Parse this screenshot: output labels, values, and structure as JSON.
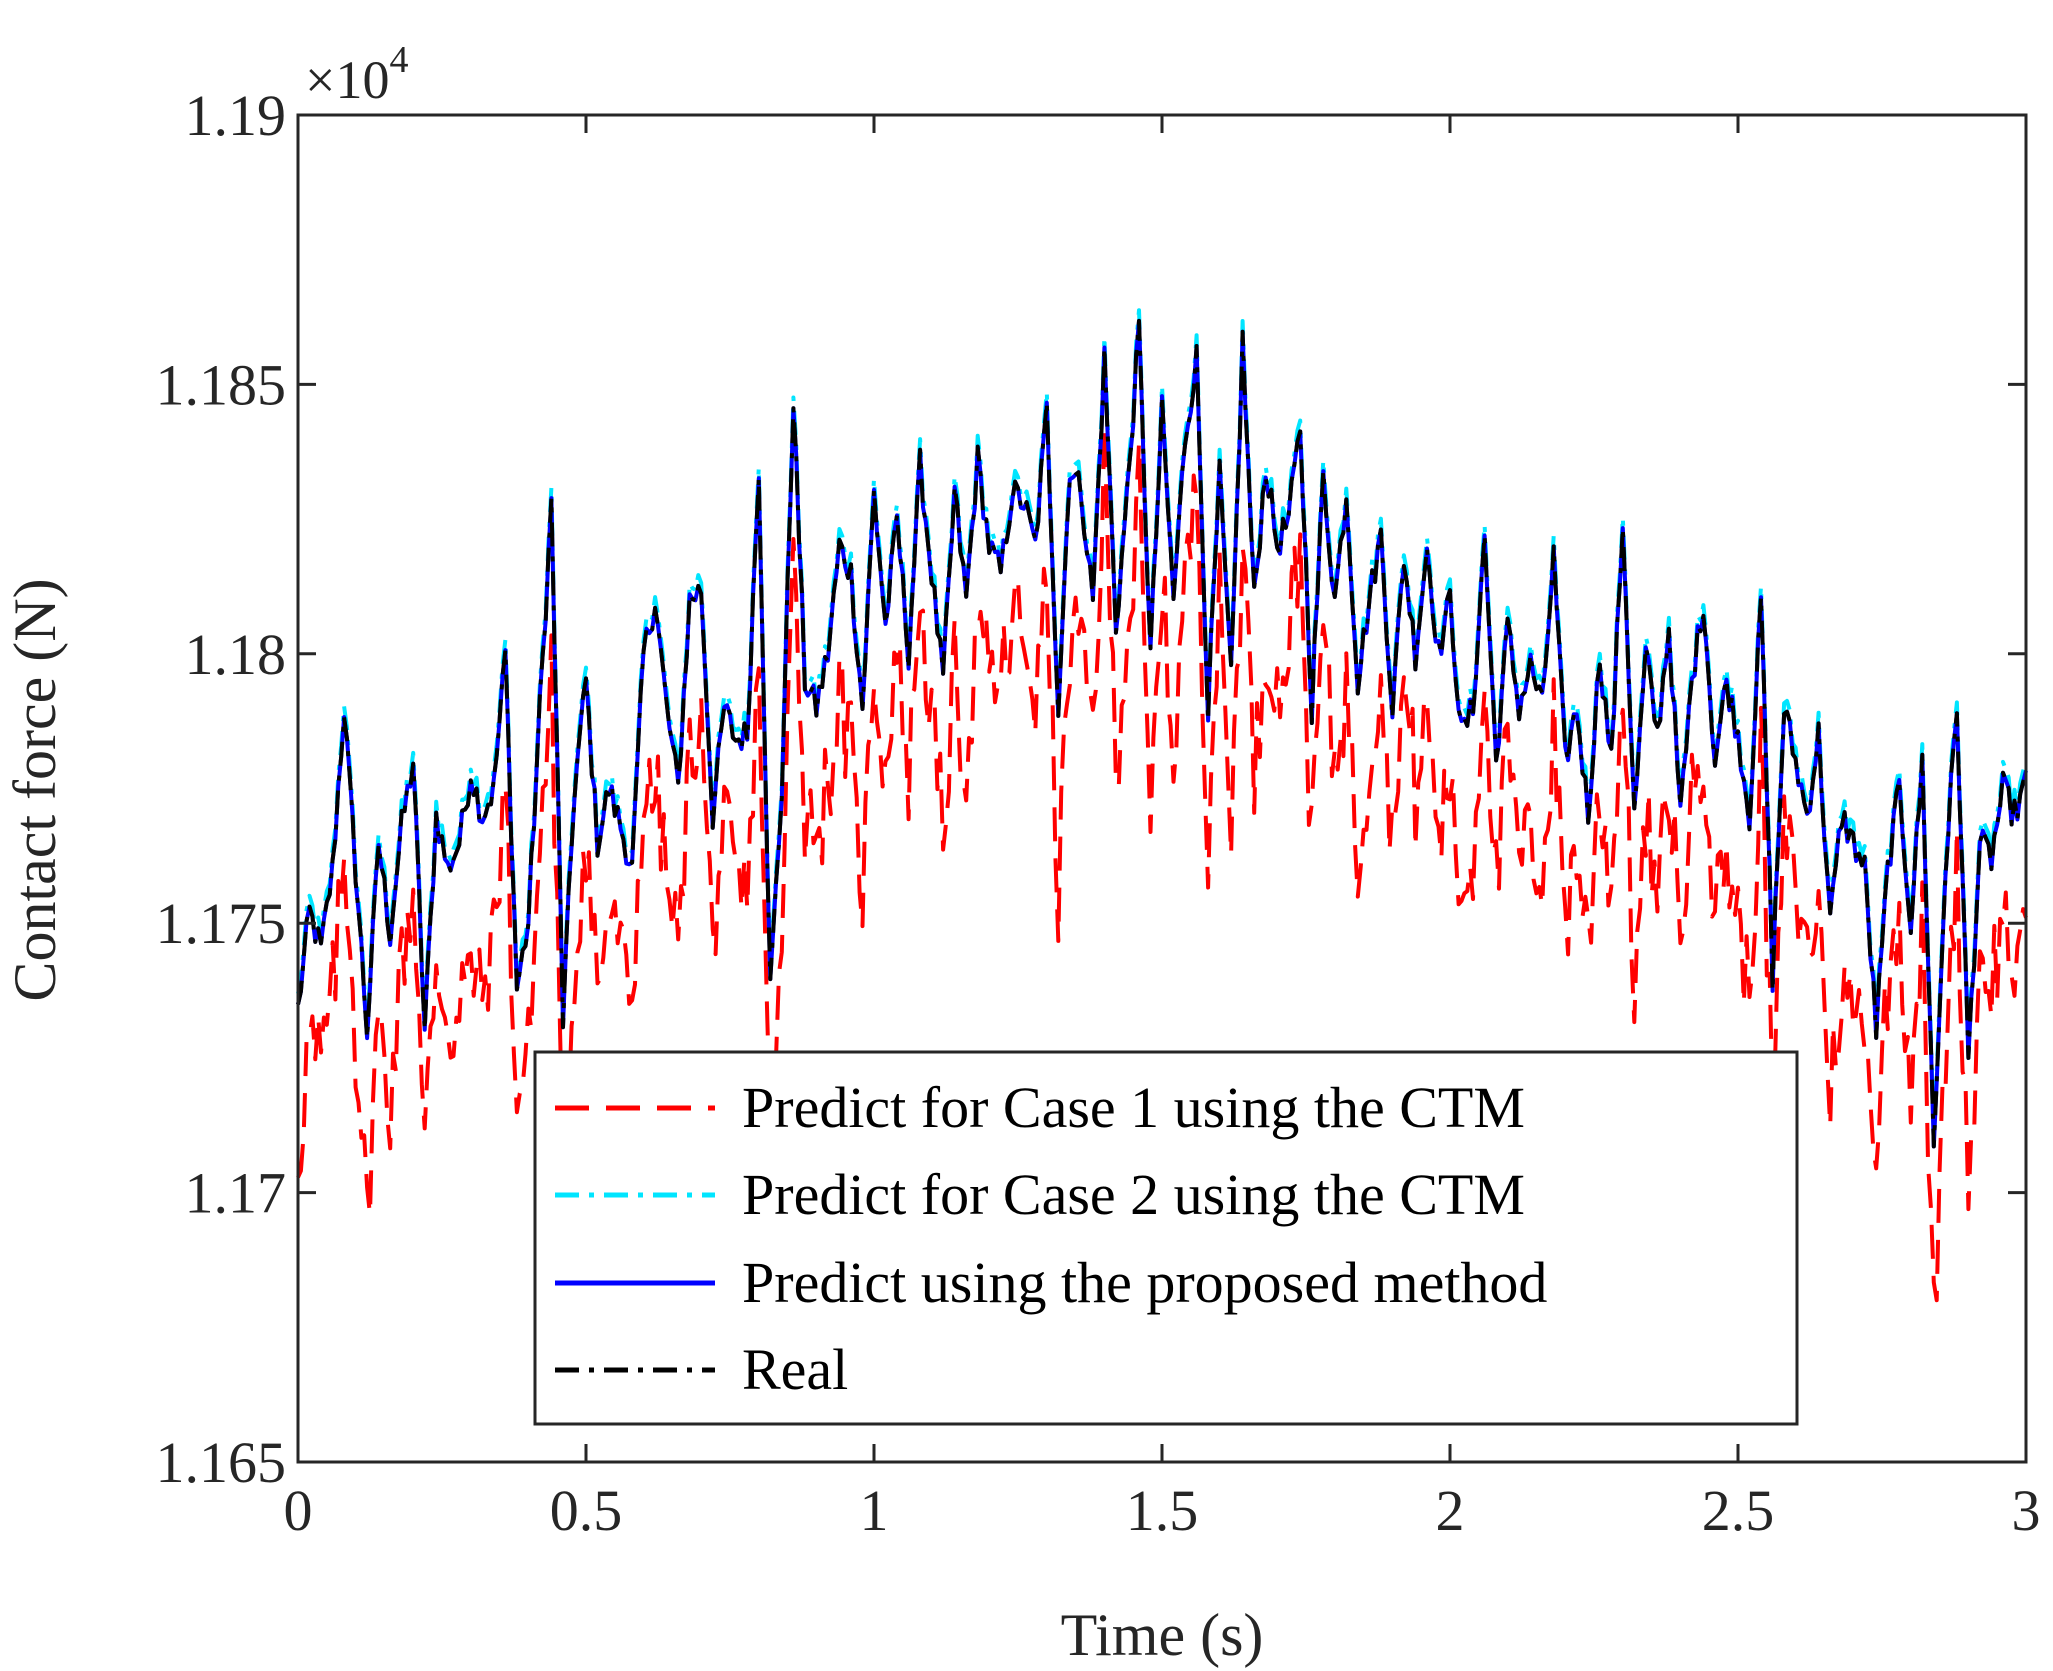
{
  "chart_data": {
    "type": "line",
    "xlabel": "Time (s)",
    "ylabel": "Contact force (N)",
    "xlim": [
      0,
      3
    ],
    "ylim": [
      11650,
      11900
    ],
    "x_ticks": [
      0,
      0.5,
      1,
      1.5,
      2,
      2.5,
      3
    ],
    "x_tick_labels": [
      "0",
      "0.5",
      "1",
      "1.5",
      "2",
      "2.5",
      "3"
    ],
    "y_ticks": [
      11650,
      11700,
      11750,
      11800,
      11850,
      11900
    ],
    "y_tick_labels": [
      "1.165",
      "1.17",
      "1.175",
      "1.18",
      "1.185",
      "1.19"
    ],
    "y_exponent_prefix": "×10",
    "y_exponent_power": "4",
    "grid": false,
    "legend_position": "bottom-center",
    "real_anchors": {
      "x": [
        0,
        0.02,
        0.04,
        0.06,
        0.08,
        0.1,
        0.12,
        0.14,
        0.16,
        0.18,
        0.2,
        0.22,
        0.24,
        0.26,
        0.28,
        0.3,
        0.32,
        0.34,
        0.36,
        0.38,
        0.4,
        0.42,
        0.44,
        0.46,
        0.48,
        0.5,
        0.52,
        0.54,
        0.56,
        0.58,
        0.6,
        0.62,
        0.64,
        0.66,
        0.68,
        0.7,
        0.72,
        0.74,
        0.76,
        0.78,
        0.8,
        0.82,
        0.84,
        0.86,
        0.88,
        0.9,
        0.92,
        0.94,
        0.96,
        0.98,
        1,
        1.02,
        1.04,
        1.06,
        1.08,
        1.1,
        1.12,
        1.14,
        1.16,
        1.18,
        1.2,
        1.22,
        1.24,
        1.26,
        1.28,
        1.3,
        1.32,
        1.34,
        1.36,
        1.38,
        1.4,
        1.42,
        1.44,
        1.46,
        1.48,
        1.5,
        1.52,
        1.54,
        1.56,
        1.58,
        1.6,
        1.62,
        1.64,
        1.66,
        1.68,
        1.7,
        1.72,
        1.74,
        1.76,
        1.78,
        1.8,
        1.82,
        1.84,
        1.86,
        1.88,
        1.9,
        1.92,
        1.94,
        1.96,
        1.98,
        2,
        2.02,
        2.04,
        2.06,
        2.08,
        2.1,
        2.12,
        2.14,
        2.16,
        2.18,
        2.2,
        2.22,
        2.24,
        2.26,
        2.28,
        2.3,
        2.32,
        2.34,
        2.36,
        2.38,
        2.4,
        2.42,
        2.44,
        2.46,
        2.48,
        2.5,
        2.52,
        2.54,
        2.56,
        2.58,
        2.6,
        2.62,
        2.64,
        2.66,
        2.68,
        2.7,
        2.72,
        2.74,
        2.76,
        2.78,
        2.8,
        2.82,
        2.84,
        2.86,
        2.88,
        2.9,
        2.92,
        2.94,
        2.96,
        2.98,
        3
      ],
      "y": [
        11734,
        11752,
        11745,
        11760,
        11790,
        11760,
        11730,
        11765,
        11748,
        11768,
        11780,
        11730,
        11770,
        11760,
        11765,
        11778,
        11770,
        11775,
        11800,
        11738,
        11750,
        11790,
        11828,
        11732,
        11775,
        11795,
        11765,
        11775,
        11768,
        11760,
        11800,
        11810,
        11790,
        11775,
        11810,
        11812,
        11770,
        11790,
        11784,
        11785,
        11835,
        11738,
        11775,
        11848,
        11795,
        11790,
        11800,
        11820,
        11815,
        11790,
        11830,
        11805,
        11825,
        11800,
        11835,
        11815,
        11795,
        11830,
        11810,
        11836,
        11820,
        11815,
        11830,
        11828,
        11820,
        11845,
        11790,
        11835,
        11830,
        11810,
        11855,
        11805,
        11830,
        11860,
        11800,
        11845,
        11810,
        11840,
        11855,
        11790,
        11833,
        11795,
        11858,
        11810,
        11835,
        11820,
        11825,
        11842,
        11790,
        11833,
        11810,
        11830,
        11795,
        11810,
        11822,
        11790,
        11818,
        11800,
        11820,
        11800,
        11810,
        11785,
        11790,
        11822,
        11780,
        11805,
        11790,
        11798,
        11790,
        11818,
        11780,
        11790,
        11770,
        11800,
        11780,
        11825,
        11770,
        11800,
        11785,
        11805,
        11770,
        11795,
        11810,
        11780,
        11795,
        11785,
        11770,
        11810,
        11740,
        11790,
        11780,
        11770,
        11785,
        11750,
        11770,
        11765,
        11760,
        11730,
        11760,
        11775,
        11750,
        11780,
        11708,
        11760,
        11790,
        11725,
        11765,
        11762,
        11775,
        11770,
        11776
      ]
    },
    "series": [
      {
        "name": "Predict for Case 1 using the CTM",
        "color": "#ff0000",
        "style": "dashed",
        "offset": -28,
        "noise": 9
      },
      {
        "name": "Predict for Case 2 using the CTM",
        "color": "#00e5ff",
        "style": "dashdot",
        "offset": 2,
        "noise": 0
      },
      {
        "name": "Predict using the proposed method",
        "color": "#0000ff",
        "style": "solid",
        "offset": 0,
        "noise": 0
      },
      {
        "name": "Real",
        "color": "#000000",
        "style": "dashdot",
        "offset": 0,
        "noise": 0
      }
    ]
  }
}
